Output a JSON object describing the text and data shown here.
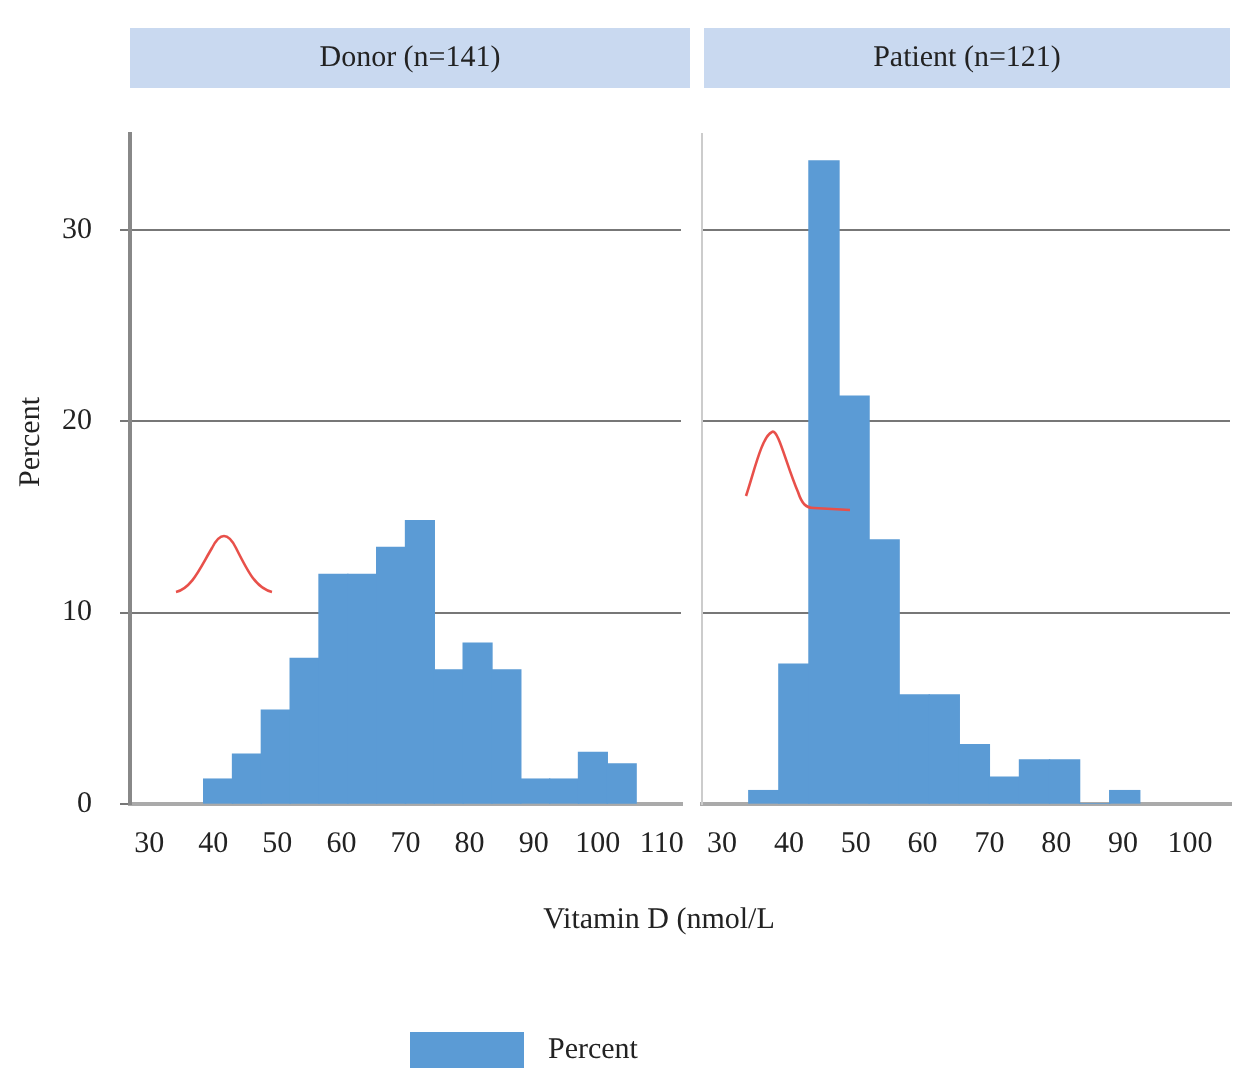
{
  "chart_data": [
    {
      "type": "histogram",
      "title": "Donor (n=141)",
      "ylabel": "Percent",
      "xlabel": "Vitamin D (nmol/L",
      "bins": [
        38.5,
        43,
        47.5,
        52,
        56.5,
        61,
        65.5,
        70,
        74.5,
        79,
        83.5,
        88,
        92.5,
        97,
        101.5,
        106
      ],
      "series": [
        {
          "name": "Percent",
          "color": "#5b9bd5",
          "values": [
            1.3,
            2.6,
            4.9,
            7.6,
            12,
            12,
            13.4,
            14.8,
            7,
            8.4,
            7,
            1.3,
            1.3,
            2.7,
            2.1
          ]
        }
      ],
      "xlim": [
        27,
        113
      ],
      "xticks": [
        30,
        40,
        50,
        60,
        70,
        80,
        90,
        100,
        110
      ],
      "ylim": [
        0,
        35
      ],
      "yticks": [
        0,
        10,
        20,
        30
      ],
      "grid": "y",
      "legend": "bottom"
    },
    {
      "type": "histogram",
      "title": "Patient (n=121)",
      "bins": [
        34,
        38.5,
        43,
        47.5,
        52,
        56.5,
        61,
        65.5,
        70,
        74.5,
        79,
        83.5,
        88,
        92.5
      ],
      "series": [
        {
          "color": "#5b9bd5",
          "values": [
            0.7,
            7.3,
            33.6,
            21.3,
            13.8,
            5.7,
            5.7,
            3.1,
            1.4,
            2.3,
            2.3,
            0,
            0.7
          ]
        }
      ],
      "xlim": [
        27,
        106
      ],
      "xticks": [
        30,
        40,
        50,
        60,
        70,
        80,
        90,
        100
      ],
      "ylim": [
        0,
        35
      ],
      "yticks": [
        0,
        10,
        20,
        30
      ],
      "grid": "y",
      "tick_labels": "x"
    }
  ]
}
